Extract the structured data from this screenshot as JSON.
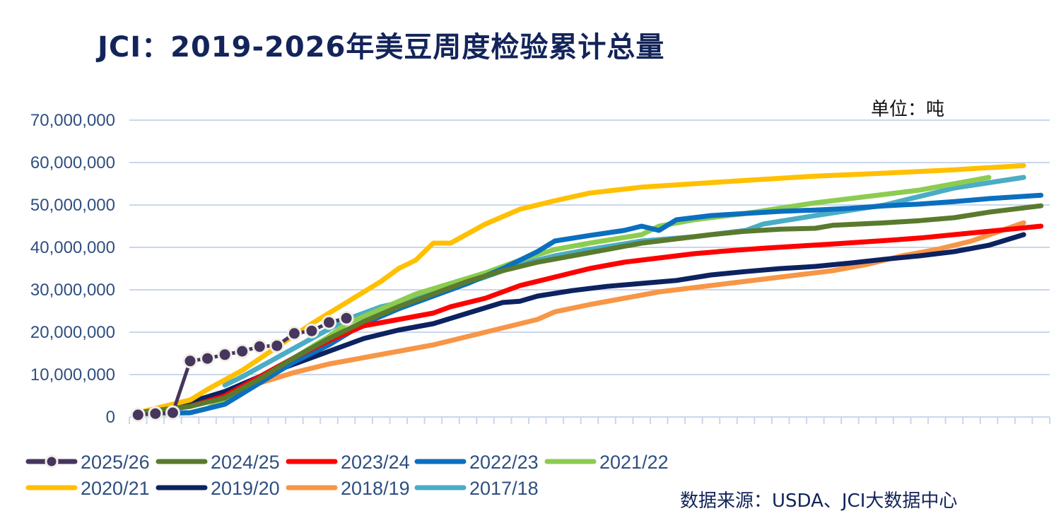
{
  "title": "JCI：2019-2026年美豆周度检验累计总量",
  "unit": "单位：吨",
  "source": "数据来源：USDA、JCI大数据中心",
  "chart_data": {
    "type": "line",
    "title": "JCI：2019-2026年美豆周度检验累计总量",
    "xlabel": "",
    "ylabel": "",
    "xlim": [
      1,
      53
    ],
    "ylim": [
      0,
      70000000
    ],
    "yticks": [
      0,
      10000000,
      20000000,
      30000000,
      40000000,
      50000000,
      60000000,
      70000000
    ],
    "ytick_labels": [
      "0",
      "10,000,000",
      "20,000,000",
      "30,000,000",
      "40,000,000",
      "50,000,000",
      "60,000,000",
      "70,000,000"
    ],
    "grid": true,
    "legend": "bottom",
    "series": [
      {
        "name": "2025/26",
        "color": "#46365e",
        "markers": true,
        "points": [
          [
            1,
            500000
          ],
          [
            2,
            800000
          ],
          [
            3,
            1000000
          ],
          [
            4,
            13200000
          ],
          [
            5,
            13800000
          ],
          [
            6,
            14700000
          ],
          [
            7,
            15500000
          ],
          [
            8,
            16600000
          ],
          [
            9,
            16800000
          ],
          [
            10,
            19700000
          ],
          [
            11,
            20300000
          ],
          [
            12,
            22300000
          ],
          [
            13,
            23300000
          ]
        ]
      },
      {
        "name": "2024/25",
        "color": "#5a7a2e",
        "points": [
          [
            1,
            1000000
          ],
          [
            4,
            2500000
          ],
          [
            6,
            4500000
          ],
          [
            8,
            9000000
          ],
          [
            10,
            14000000
          ],
          [
            12,
            18500000
          ],
          [
            14,
            22500000
          ],
          [
            16,
            26000000
          ],
          [
            18,
            29000000
          ],
          [
            20,
            32000000
          ],
          [
            22,
            34500000
          ],
          [
            24,
            36500000
          ],
          [
            26,
            38000000
          ],
          [
            28,
            39500000
          ],
          [
            30,
            41000000
          ],
          [
            32,
            42000000
          ],
          [
            34,
            43000000
          ],
          [
            36,
            43800000
          ],
          [
            38,
            44300000
          ],
          [
            40,
            44500000
          ],
          [
            41,
            45200000
          ],
          [
            44,
            45800000
          ],
          [
            46,
            46300000
          ],
          [
            48,
            47000000
          ],
          [
            50,
            48300000
          ],
          [
            53,
            49800000
          ]
        ]
      },
      {
        "name": "2023/24",
        "color": "#ff0000",
        "points": [
          [
            1,
            1000000
          ],
          [
            4,
            2500000
          ],
          [
            6,
            5000000
          ],
          [
            8,
            9500000
          ],
          [
            10,
            14000000
          ],
          [
            12,
            18000000
          ],
          [
            14,
            21500000
          ],
          [
            16,
            23000000
          ],
          [
            18,
            24500000
          ],
          [
            19,
            26000000
          ],
          [
            21,
            28000000
          ],
          [
            22,
            29500000
          ],
          [
            23,
            31000000
          ],
          [
            25,
            33000000
          ],
          [
            27,
            35000000
          ],
          [
            29,
            36500000
          ],
          [
            31,
            37500000
          ],
          [
            33,
            38500000
          ],
          [
            35,
            39200000
          ],
          [
            37,
            39800000
          ],
          [
            39,
            40300000
          ],
          [
            41,
            40800000
          ],
          [
            44,
            41600000
          ],
          [
            46,
            42200000
          ],
          [
            48,
            43000000
          ],
          [
            50,
            43800000
          ],
          [
            53,
            45000000
          ]
        ]
      },
      {
        "name": "2022/23",
        "color": "#0b6fc0",
        "points": [
          [
            1,
            1000000
          ],
          [
            4,
            1000000
          ],
          [
            6,
            3000000
          ],
          [
            8,
            8000000
          ],
          [
            10,
            13000000
          ],
          [
            12,
            17000000
          ],
          [
            14,
            22000000
          ],
          [
            16,
            25500000
          ],
          [
            18,
            28500000
          ],
          [
            20,
            31500000
          ],
          [
            22,
            35000000
          ],
          [
            24,
            39000000
          ],
          [
            25,
            41500000
          ],
          [
            27,
            42800000
          ],
          [
            29,
            44000000
          ],
          [
            30,
            45000000
          ],
          [
            31,
            44000000
          ],
          [
            32,
            46500000
          ],
          [
            34,
            47500000
          ],
          [
            36,
            48000000
          ],
          [
            38,
            48500000
          ],
          [
            40,
            48800000
          ],
          [
            42,
            49200000
          ],
          [
            44,
            49800000
          ],
          [
            46,
            50200000
          ],
          [
            48,
            50800000
          ],
          [
            50,
            51500000
          ],
          [
            53,
            52300000
          ]
        ]
      },
      {
        "name": "2021/22",
        "color": "#8ccc50",
        "points": [
          [
            1,
            1000000
          ],
          [
            3,
            800000
          ],
          [
            4,
            1000000
          ],
          [
            5,
            2000000
          ],
          [
            6,
            4000000
          ],
          [
            8,
            9000000
          ],
          [
            10,
            14000000
          ],
          [
            12,
            19000000
          ],
          [
            13,
            22000000
          ],
          [
            15,
            25500000
          ],
          [
            17,
            29000000
          ],
          [
            19,
            31500000
          ],
          [
            21,
            34000000
          ],
          [
            23,
            37000000
          ],
          [
            25,
            39500000
          ],
          [
            27,
            41000000
          ],
          [
            30,
            43000000
          ],
          [
            31,
            45000000
          ],
          [
            33,
            46500000
          ],
          [
            36,
            48000000
          ],
          [
            40,
            50500000
          ],
          [
            44,
            52500000
          ],
          [
            46,
            53500000
          ],
          [
            48,
            55000000
          ],
          [
            50,
            56500000
          ]
        ]
      },
      {
        "name": "2020/21",
        "color": "#ffc000",
        "points": [
          [
            1,
            1000000
          ],
          [
            4,
            4000000
          ],
          [
            5,
            6500000
          ],
          [
            7,
            11000000
          ],
          [
            9,
            16500000
          ],
          [
            11,
            22000000
          ],
          [
            13,
            27000000
          ],
          [
            15,
            32000000
          ],
          [
            16,
            35000000
          ],
          [
            17,
            37000000
          ],
          [
            18,
            41000000
          ],
          [
            19,
            41000000
          ],
          [
            21,
            45500000
          ],
          [
            23,
            49000000
          ],
          [
            25,
            51000000
          ],
          [
            27,
            52800000
          ],
          [
            30,
            54200000
          ],
          [
            33,
            55000000
          ],
          [
            36,
            55800000
          ],
          [
            40,
            56800000
          ],
          [
            44,
            57500000
          ],
          [
            48,
            58300000
          ],
          [
            52,
            59300000
          ]
        ]
      },
      {
        "name": "2019/20",
        "color": "#0d2260",
        "points": [
          [
            1,
            500000
          ],
          [
            4,
            3500000
          ],
          [
            6,
            6000000
          ],
          [
            8,
            9500000
          ],
          [
            10,
            12500000
          ],
          [
            12,
            15500000
          ],
          [
            14,
            18500000
          ],
          [
            16,
            20500000
          ],
          [
            18,
            22000000
          ],
          [
            20,
            24500000
          ],
          [
            22,
            27000000
          ],
          [
            23,
            27300000
          ],
          [
            24,
            28500000
          ],
          [
            26,
            29800000
          ],
          [
            28,
            30800000
          ],
          [
            30,
            31500000
          ],
          [
            32,
            32200000
          ],
          [
            34,
            33500000
          ],
          [
            36,
            34300000
          ],
          [
            38,
            35000000
          ],
          [
            40,
            35500000
          ],
          [
            42,
            36300000
          ],
          [
            44,
            37200000
          ],
          [
            46,
            38000000
          ],
          [
            48,
            39000000
          ],
          [
            50,
            40500000
          ],
          [
            52,
            43000000
          ]
        ]
      },
      {
        "name": "2018/19",
        "color": "#f79646",
        "points": [
          [
            1,
            1000000
          ],
          [
            4,
            3000000
          ],
          [
            6,
            5000000
          ],
          [
            8,
            8000000
          ],
          [
            10,
            10500000
          ],
          [
            12,
            12500000
          ],
          [
            14,
            14000000
          ],
          [
            16,
            15500000
          ],
          [
            18,
            17000000
          ],
          [
            20,
            19000000
          ],
          [
            22,
            21000000
          ],
          [
            24,
            23000000
          ],
          [
            25,
            24800000
          ],
          [
            27,
            26500000
          ],
          [
            29,
            28000000
          ],
          [
            31,
            29500000
          ],
          [
            33,
            30500000
          ],
          [
            35,
            31500000
          ],
          [
            37,
            32500000
          ],
          [
            39,
            33500000
          ],
          [
            41,
            34500000
          ],
          [
            43,
            36000000
          ],
          [
            45,
            38000000
          ],
          [
            47,
            39500000
          ],
          [
            49,
            41500000
          ],
          [
            52,
            45800000
          ]
        ]
      },
      {
        "name": "2017/18",
        "color": "#4bacc6",
        "points": [
          [
            1,
            1000000
          ],
          [
            4,
            4000000
          ],
          null,
          [
            6,
            7500000
          ],
          [
            7,
            9500000
          ],
          [
            9,
            14000000
          ],
          [
            11,
            18500000
          ],
          [
            13,
            23000000
          ],
          [
            15,
            26000000
          ],
          [
            17,
            27800000
          ],
          [
            19,
            30500000
          ],
          [
            21,
            33000000
          ],
          [
            23,
            36000000
          ],
          [
            25,
            38000000
          ],
          [
            27,
            39500000
          ],
          [
            30,
            41500000
          ],
          [
            33,
            42500000
          ],
          [
            36,
            44000000
          ],
          [
            37,
            45500000
          ],
          [
            40,
            47500000
          ],
          [
            44,
            50000000
          ],
          [
            48,
            54000000
          ],
          [
            52,
            56500000
          ]
        ]
      }
    ]
  }
}
